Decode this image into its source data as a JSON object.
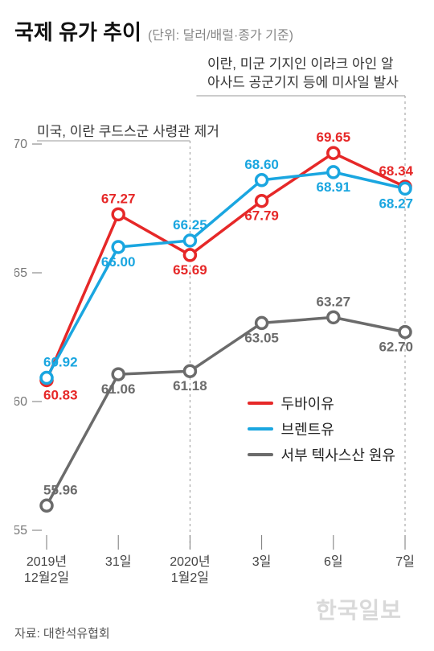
{
  "title": "국제 유가 추이",
  "unit": "(단위: 달러/배럴·종가 기준)",
  "annotations": {
    "left": "미국, 이란 쿠드스군 사령관 제거",
    "right_line1": "이란, 미군 기지인 이라크 아인 알",
    "right_line2": "아사드 공군기지 등에 미사일 발사"
  },
  "chart": {
    "type": "line",
    "x_labels": [
      "2019년\n12월2일",
      "31일",
      "2020년\n1월2일",
      "3일",
      "6일",
      "7일"
    ],
    "ylim": [
      55,
      70
    ],
    "yticks": [
      55,
      60,
      65,
      70
    ],
    "series": [
      {
        "key": "dubai",
        "name": "두바이유",
        "color": "#e62828",
        "values": [
          60.83,
          67.27,
          65.69,
          67.79,
          69.65,
          68.34
        ],
        "label_pos": [
          "below",
          "above",
          "below",
          "below",
          "above",
          "above"
        ]
      },
      {
        "key": "brent",
        "name": "브렌트유",
        "color": "#1aa6e0",
        "values": [
          60.92,
          66.0,
          66.25,
          68.6,
          68.91,
          68.27
        ],
        "label_pos": [
          "above",
          "below",
          "above",
          "above",
          "below",
          "below"
        ]
      },
      {
        "key": "wti",
        "name": "서부 텍사스산 원유",
        "color": "#6b6b6b",
        "values": [
          55.96,
          61.06,
          61.18,
          63.05,
          63.27,
          62.7
        ],
        "label_pos": [
          "above",
          "below",
          "below",
          "below",
          "above",
          "below"
        ]
      }
    ],
    "event_x_indices": [
      2,
      5
    ],
    "background_color": "#ffffff",
    "grid_color": "#cfcfcf",
    "line_width": 3.5,
    "marker_radius": 7,
    "marker_fill": "#ffffff",
    "label_fontsize": 17,
    "axis_fontsize": 16,
    "axis_color": "#777"
  },
  "source": "자료: 대한석유협회",
  "watermark": "한국일보"
}
